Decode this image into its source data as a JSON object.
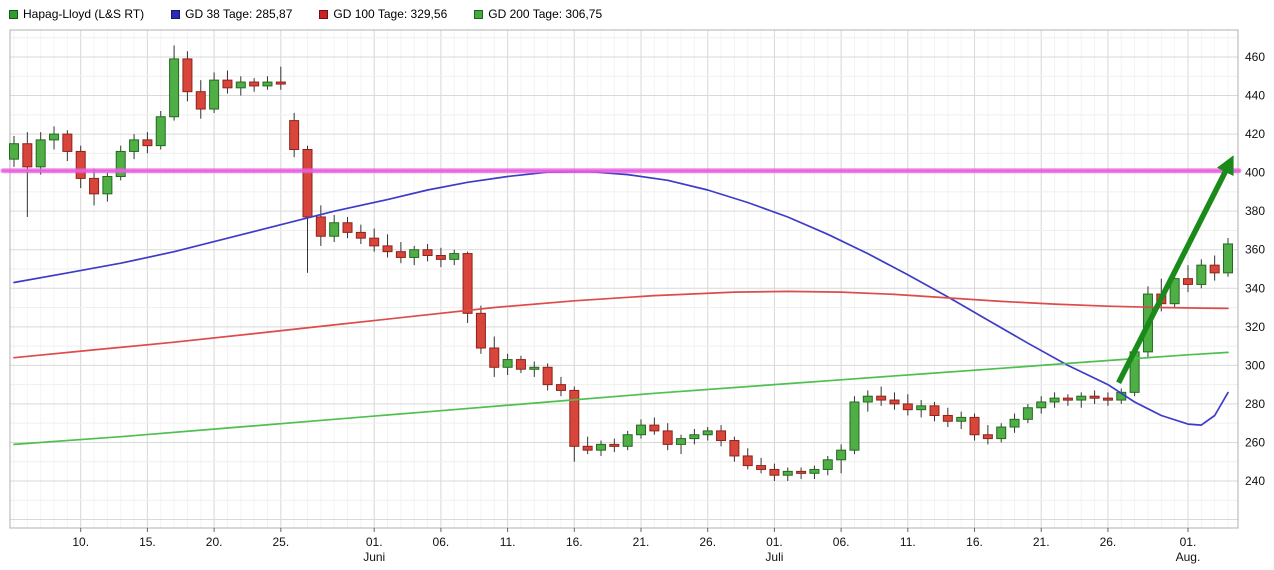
{
  "legend": {
    "items": [
      {
        "label": "Hapag-Lloyd (L&S RT)",
        "color": "#2f9e2f"
      },
      {
        "label": "GD 38 Tage: 285,87",
        "color": "#2a2ab8"
      },
      {
        "label": "GD 100 Tage: 329,56",
        "color": "#cc2222"
      },
      {
        "label": "GD 200 Tage: 306,75",
        "color": "#3fae3f"
      }
    ]
  },
  "chart_data": {
    "type": "candlestick",
    "title": "Hapag-Lloyd (L&S RT)",
    "y_axis": {
      "side": "right",
      "min": 216,
      "max": 473,
      "ticks": [
        240,
        260,
        280,
        300,
        320,
        340,
        360,
        380,
        400,
        420,
        440,
        460
      ]
    },
    "x_axis": {
      "days_total": 92,
      "ticks": [
        {
          "label": "10.",
          "offset": 5
        },
        {
          "label": "15.",
          "offset": 10
        },
        {
          "label": "20.",
          "offset": 15
        },
        {
          "label": "25.",
          "offset": 20
        },
        {
          "label": "01.",
          "offset": 27
        },
        {
          "label": "06.",
          "offset": 32
        },
        {
          "label": "11.",
          "offset": 37
        },
        {
          "label": "16.",
          "offset": 42
        },
        {
          "label": "21.",
          "offset": 47
        },
        {
          "label": "26.",
          "offset": 52
        },
        {
          "label": "01.",
          "offset": 57
        },
        {
          "label": "06.",
          "offset": 62
        },
        {
          "label": "11.",
          "offset": 67
        },
        {
          "label": "16.",
          "offset": 72
        },
        {
          "label": "21.",
          "offset": 77
        },
        {
          "label": "26.",
          "offset": 82
        },
        {
          "label": "01.",
          "offset": 88
        }
      ],
      "month_labels": [
        {
          "label": "Juni",
          "offset": 27
        },
        {
          "label": "Juli",
          "offset": 57
        },
        {
          "label": "Aug.",
          "offset": 88
        }
      ]
    },
    "candles": [
      [
        "05.05.",
        407,
        419,
        403,
        415
      ],
      [
        "06.05.",
        415,
        421,
        377,
        403
      ],
      [
        "07.05.",
        403,
        421,
        399,
        417
      ],
      [
        "08.05.",
        417,
        424,
        412,
        420
      ],
      [
        "09.05.",
        420,
        422,
        406,
        411
      ],
      [
        "10.05.",
        411,
        414,
        392,
        397
      ],
      [
        "11.05.",
        397,
        402,
        383,
        389
      ],
      [
        "12.05.",
        389,
        400,
        385,
        398
      ],
      [
        "13.05.",
        398,
        414,
        396,
        411
      ],
      [
        "14.05.",
        411,
        420,
        407,
        417
      ],
      [
        "15.05.",
        417,
        421,
        410,
        414
      ],
      [
        "16.05.",
        414,
        432,
        412,
        429
      ],
      [
        "17.05.",
        429,
        466,
        427,
        459
      ],
      [
        "18.05.",
        459,
        463,
        437,
        442
      ],
      [
        "19.05.",
        442,
        448,
        428,
        433
      ],
      [
        "20.05.",
        433,
        452,
        431,
        448
      ],
      [
        "21.05.",
        448,
        453,
        441,
        444
      ],
      [
        "22.05.",
        444,
        450,
        440,
        447
      ],
      [
        "23.05.",
        447,
        449,
        442,
        445
      ],
      [
        "24.05.",
        445,
        450,
        443,
        447
      ],
      [
        "25.05.",
        447,
        455,
        443,
        446
      ],
      [
        "26.05.",
        427,
        431,
        408,
        412
      ],
      [
        "27.05.",
        412,
        414,
        348,
        377
      ],
      [
        "28.05.",
        377,
        383,
        362,
        367
      ],
      [
        "29.05.",
        367,
        378,
        364,
        374
      ],
      [
        "30.05.",
        374,
        377,
        366,
        369
      ],
      [
        "31.05.",
        369,
        373,
        363,
        366
      ],
      [
        "01.06.",
        366,
        371,
        359,
        362
      ],
      [
        "02.06.",
        362,
        368,
        356,
        359
      ],
      [
        "03.06.",
        359,
        364,
        353,
        356
      ],
      [
        "04.06.",
        356,
        362,
        352,
        360
      ],
      [
        "05.06.",
        360,
        363,
        354,
        357
      ],
      [
        "06.06.",
        357,
        361,
        351,
        355
      ],
      [
        "07.06.",
        355,
        360,
        352,
        358
      ],
      [
        "08.06.",
        358,
        359,
        322,
        327
      ],
      [
        "09.06.",
        327,
        331,
        306,
        309
      ],
      [
        "10.06.",
        309,
        315,
        294,
        299
      ],
      [
        "11.06.",
        299,
        306,
        295,
        303
      ],
      [
        "12.06.",
        303,
        305,
        296,
        298
      ],
      [
        "13.06.",
        298,
        302,
        294,
        299
      ],
      [
        "14.06.",
        299,
        301,
        287,
        290
      ],
      [
        "15.06.",
        290,
        294,
        284,
        287
      ],
      [
        "16.06.",
        287,
        289,
        250,
        258
      ],
      [
        "17.06.",
        258,
        263,
        254,
        256
      ],
      [
        "18.06.",
        256,
        261,
        253,
        259
      ],
      [
        "19.06.",
        259,
        262,
        255,
        258
      ],
      [
        "20.06.",
        258,
        266,
        256,
        264
      ],
      [
        "21.06.",
        264,
        272,
        262,
        269
      ],
      [
        "22.06.",
        269,
        273,
        264,
        266
      ],
      [
        "23.06.",
        266,
        270,
        256,
        259
      ],
      [
        "24.06.",
        259,
        264,
        254,
        262
      ],
      [
        "25.06.",
        262,
        267,
        259,
        264
      ],
      [
        "26.06.",
        264,
        268,
        261,
        266
      ],
      [
        "27.06.",
        266,
        269,
        258,
        261
      ],
      [
        "28.06.",
        261,
        263,
        250,
        253
      ],
      [
        "29.06.",
        253,
        257,
        246,
        248
      ],
      [
        "30.06.",
        248,
        252,
        244,
        246
      ],
      [
        "01.07.",
        246,
        249,
        240,
        243
      ],
      [
        "02.07.",
        243,
        247,
        240,
        245
      ],
      [
        "03.07.",
        245,
        247,
        241,
        244
      ],
      [
        "04.07.",
        244,
        248,
        241,
        246
      ],
      [
        "05.07.",
        246,
        253,
        243,
        251
      ],
      [
        "06.07.",
        251,
        259,
        244,
        256
      ],
      [
        "07.07.",
        256,
        284,
        254,
        281
      ],
      [
        "08.07.",
        281,
        287,
        276,
        284
      ],
      [
        "09.07.",
        284,
        289,
        279,
        282
      ],
      [
        "10.07.",
        282,
        286,
        277,
        280
      ],
      [
        "11.07.",
        280,
        285,
        274,
        277
      ],
      [
        "12.07.",
        277,
        282,
        273,
        279
      ],
      [
        "13.07.",
        279,
        281,
        271,
        274
      ],
      [
        "14.07.",
        274,
        278,
        268,
        271
      ],
      [
        "15.07.",
        271,
        276,
        267,
        273
      ],
      [
        "16.07.",
        273,
        275,
        261,
        264
      ],
      [
        "17.07.",
        264,
        269,
        259,
        262
      ],
      [
        "18.07.",
        262,
        270,
        260,
        268
      ],
      [
        "19.07.",
        268,
        275,
        265,
        272
      ],
      [
        "20.07.",
        272,
        280,
        270,
        278
      ],
      [
        "21.07.",
        278,
        284,
        275,
        281
      ],
      [
        "22.07.",
        281,
        286,
        278,
        283
      ],
      [
        "23.07.",
        283,
        285,
        279,
        282
      ],
      [
        "24.07.",
        282,
        286,
        278,
        284
      ],
      [
        "25.07.",
        284,
        287,
        280,
        283
      ],
      [
        "26.07.",
        283,
        286,
        279,
        282
      ],
      [
        "27.07.",
        282,
        288,
        280,
        286
      ],
      [
        "28.07.",
        286,
        310,
        284,
        307
      ],
      [
        "29.07.",
        307,
        341,
        304,
        337
      ],
      [
        "30.07.",
        337,
        345,
        328,
        332
      ],
      [
        "31.07.",
        332,
        349,
        330,
        345
      ],
      [
        "01.08.",
        345,
        352,
        338,
        342
      ],
      [
        "02.08.",
        342,
        355,
        340,
        352
      ],
      [
        "03.08.",
        352,
        357,
        344,
        348
      ],
      [
        "04.08.",
        348,
        366,
        346,
        363
      ]
    ],
    "moving_averages": [
      {
        "name": "GD 38 Tage",
        "current": "285,87",
        "color": "#3c3cc8",
        "points": [
          [
            0,
            343
          ],
          [
            4,
            348
          ],
          [
            8,
            353
          ],
          [
            12,
            359
          ],
          [
            16,
            366
          ],
          [
            20,
            373
          ],
          [
            24,
            380
          ],
          [
            28,
            386
          ],
          [
            31,
            391
          ],
          [
            34,
            395
          ],
          [
            37,
            398
          ],
          [
            40,
            400.3
          ],
          [
            43,
            400.6
          ],
          [
            46,
            399
          ],
          [
            49,
            396
          ],
          [
            52,
            391
          ],
          [
            55,
            384.5
          ],
          [
            58,
            377
          ],
          [
            61,
            368
          ],
          [
            64,
            358
          ],
          [
            67,
            347
          ],
          [
            70,
            335.5
          ],
          [
            73,
            323.5
          ],
          [
            76,
            311.5
          ],
          [
            79,
            300
          ],
          [
            82,
            290
          ],
          [
            84,
            281
          ],
          [
            86,
            274
          ],
          [
            88,
            269.5
          ],
          [
            89,
            269
          ],
          [
            90,
            274
          ],
          [
            91,
            285.87
          ]
        ]
      },
      {
        "name": "GD 100 Tage",
        "current": "329,56",
        "color": "#dd4b4b",
        "points": [
          [
            0,
            304
          ],
          [
            6,
            308
          ],
          [
            12,
            312
          ],
          [
            18,
            316.5
          ],
          [
            24,
            321
          ],
          [
            30,
            325.5
          ],
          [
            36,
            330
          ],
          [
            42,
            333.5
          ],
          [
            48,
            336.2
          ],
          [
            54,
            338
          ],
          [
            58,
            338.4
          ],
          [
            62,
            338
          ],
          [
            66,
            336.8
          ],
          [
            70,
            335
          ],
          [
            74,
            333.2
          ],
          [
            78,
            331.8
          ],
          [
            82,
            330.7
          ],
          [
            86,
            330
          ],
          [
            89,
            329.7
          ],
          [
            91,
            329.56
          ]
        ]
      },
      {
        "name": "GD 200 Tage",
        "current": "306,75",
        "color": "#4ec04e",
        "points": [
          [
            0,
            259
          ],
          [
            8,
            263
          ],
          [
            16,
            267.5
          ],
          [
            24,
            272
          ],
          [
            32,
            276.5
          ],
          [
            40,
            281
          ],
          [
            48,
            285.5
          ],
          [
            56,
            289.5
          ],
          [
            62,
            292.5
          ],
          [
            68,
            295.5
          ],
          [
            74,
            298.5
          ],
          [
            79,
            301
          ],
          [
            84,
            303.5
          ],
          [
            88,
            305.5
          ],
          [
            91,
            306.75
          ]
        ]
      }
    ],
    "annotations": {
      "resistance_line": {
        "price": 401,
        "color": "#ea5fe0"
      },
      "trend_arrow": {
        "from_offset": 82.8,
        "from_price": 291,
        "to_offset": 91.2,
        "to_price": 406,
        "color": "#1a8a1a"
      }
    },
    "style": {
      "up_fill": "#4fae46",
      "up_stroke": "#226b1e",
      "down_fill": "#d8453a",
      "down_stroke": "#8f231b",
      "wick": "#333333",
      "grid_major": "#d9d9d9",
      "grid_minor": "#efefef",
      "grid_day": "#f4f4f4",
      "plot_border": "#b0b0b0",
      "axis_text": "#111111",
      "background": "#ffffff"
    }
  }
}
